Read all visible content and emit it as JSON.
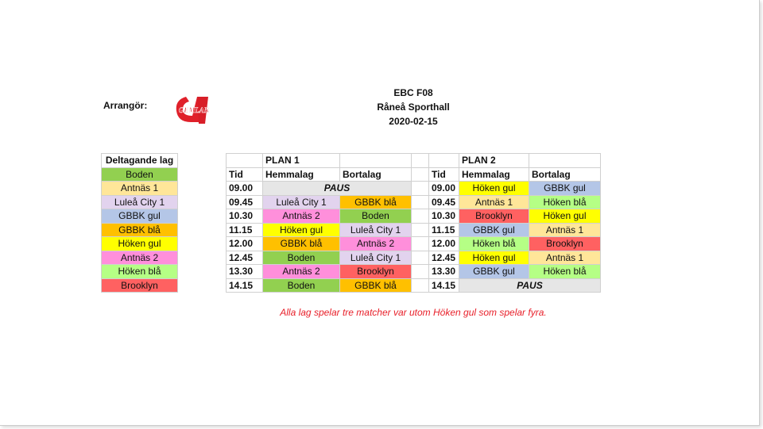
{
  "header": {
    "organizer_label": "Arrangör:",
    "logo_text": "GEMLAN",
    "event": "EBC F08",
    "venue": "Råneå Sporthall",
    "date": "2020-02-15"
  },
  "teams": {
    "title": "Deltagande lag",
    "items": [
      {
        "name": "Boden",
        "color": "#92d050"
      },
      {
        "name": "Antnäs 1",
        "color": "#ffe699"
      },
      {
        "name": "Luleå City 1",
        "color": "#e2d3ee"
      },
      {
        "name": "GBBK gul",
        "color": "#b4c6e7"
      },
      {
        "name": "GBBK blå",
        "color": "#ffc000"
      },
      {
        "name": "Höken gul",
        "color": "#ffff00"
      },
      {
        "name": "Antnäs 2",
        "color": "#ff8fdb"
      },
      {
        "name": "Höken blå",
        "color": "#b5ff85"
      },
      {
        "name": "Brooklyn",
        "color": "#ff6161"
      }
    ]
  },
  "schedule": {
    "plan1_label": "PLAN 1",
    "plan2_label": "PLAN 2",
    "col_time": "Tid",
    "col_home": "Hemmalag",
    "col_away": "Bortalag",
    "pause_label": "PAUS",
    "rows": [
      {
        "time": "09.00",
        "p1": null,
        "p2": [
          "Höken gul",
          "GBBK gul"
        ]
      },
      {
        "time": "09.45",
        "p1": [
          "Luleå City 1",
          "GBBK blå"
        ],
        "p2": [
          "Antnäs 1",
          "Höken blå"
        ]
      },
      {
        "time": "10.30",
        "p1": [
          "Antnäs 2",
          "Boden"
        ],
        "p2": [
          "Brooklyn",
          "Höken gul"
        ]
      },
      {
        "time": "11.15",
        "p1": [
          "Höken gul",
          "Luleå City 1"
        ],
        "p2": [
          "GBBK gul",
          "Antnäs 1"
        ]
      },
      {
        "time": "12.00",
        "p1": [
          "GBBK blå",
          "Antnäs 2"
        ],
        "p2": [
          "Höken blå",
          "Brooklyn"
        ]
      },
      {
        "time": "12.45",
        "p1": [
          "Boden",
          "Luleå City 1"
        ],
        "p2": [
          "Höken gul",
          "Antnäs 1"
        ]
      },
      {
        "time": "13.30",
        "p1": [
          "Antnäs 2",
          "Brooklyn"
        ],
        "p2": [
          "GBBK gul",
          "Höken blå"
        ]
      },
      {
        "time": "14.15",
        "p1": [
          "Boden",
          "GBBK blå"
        ],
        "p2": null
      }
    ]
  },
  "note": "Alla lag spelar tre matcher var utom Höken gul som spelar fyra."
}
